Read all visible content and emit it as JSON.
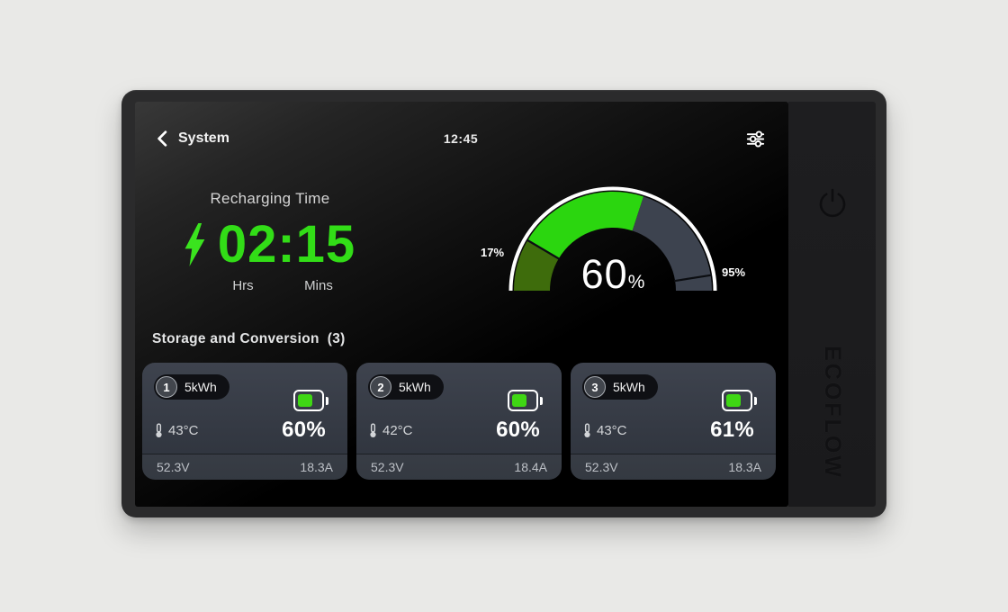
{
  "device": {
    "brand_logo": "ECOFLOW"
  },
  "header": {
    "back_label": "System",
    "time": "12:45"
  },
  "recharge": {
    "title": "Recharging Time",
    "time_value": "02:15",
    "hours_label": "Hrs",
    "minutes_label": "Mins"
  },
  "gauge": {
    "value_text": "60",
    "unit": "%",
    "percent": 60,
    "low_marker": 17,
    "high_marker": 95,
    "low_label": "17%",
    "high_label": "95%",
    "segment_colors": {
      "low": "#3e6c0c",
      "active": "#2bd60f",
      "rest": "#3d434f"
    },
    "ring_color": "#ffffff",
    "separator_color": "#0c0e12"
  },
  "section": {
    "title": "Storage and Conversion",
    "count": "(3)"
  },
  "cards": [
    {
      "index": "1",
      "capacity": "5kWh",
      "temp": "43°C",
      "percent": "60%",
      "voltage": "52.3V",
      "current": "18.3A"
    },
    {
      "index": "2",
      "capacity": "5kWh",
      "temp": "42°C",
      "percent": "60%",
      "voltage": "52.3V",
      "current": "18.4A"
    },
    {
      "index": "3",
      "capacity": "5kWh",
      "temp": "43°C",
      "percent": "61%",
      "voltage": "52.3V",
      "current": "18.3A"
    }
  ],
  "icons": {
    "back": "chevron-left",
    "settings": "sliders",
    "charge": "lightning-bolt",
    "temperature": "thermometer",
    "battery": "battery-horizontal",
    "power": "power-symbol"
  },
  "colors": {
    "accent_green": "#32dd17",
    "battery_green": "#3fd714",
    "screen_bg": "#000000",
    "card_bg_top": "#3e434e",
    "card_bg_bottom": "#2d323b"
  }
}
